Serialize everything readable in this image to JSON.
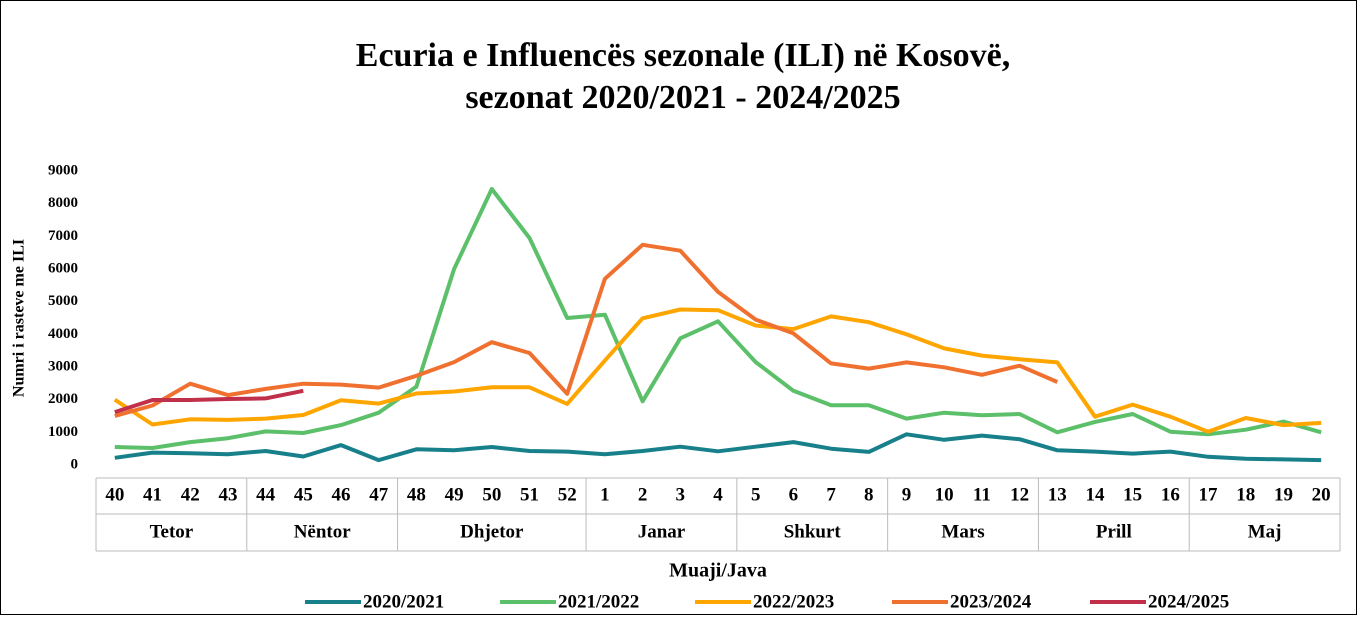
{
  "chart_data": {
    "type": "line",
    "title": "Ecuria e Influencës sezonale (ILI) në Kosovë,",
    "subtitle": "sezonat 2020/2021 - 2024/2025",
    "y_label": "Numri i rasteve me ILI",
    "x_label": "Muaji/Java",
    "categories": [
      "40",
      "41",
      "42",
      "43",
      "44",
      "45",
      "46",
      "47",
      "48",
      "49",
      "50",
      "51",
      "52",
      "1",
      "2",
      "3",
      "4",
      "5",
      "6",
      "7",
      "8",
      "9",
      "10",
      "11",
      "12",
      "13",
      "14",
      "15",
      "16",
      "17",
      "18",
      "19",
      "20"
    ],
    "months": [
      "Tetor",
      "Tetor",
      "Tetor",
      "Tetor",
      "Nëntor",
      "Nëntor",
      "Nëntor",
      "Nëntor",
      "Dhjetor",
      "Dhjetor",
      "Dhjetor",
      "Dhjetor",
      "Dhjetor",
      "Janar",
      "Janar",
      "Janar",
      "Janar",
      "Shkurt",
      "Shkurt",
      "Shkurt",
      "Shkurt",
      "Mars",
      "Mars",
      "Mars",
      "Mars",
      "Prill",
      "Prill",
      "Prill",
      "Prill",
      "Maj",
      "Maj",
      "Maj",
      "Maj"
    ],
    "ylim": [
      0,
      9000
    ],
    "yticks": [
      0,
      1000,
      2000,
      3000,
      4000,
      5000,
      6000,
      7000,
      8000,
      9000
    ],
    "grid": false,
    "legend": "bottom",
    "series": [
      {
        "name": "2020/2021",
        "color": "#17808a",
        "values": [
          220,
          380,
          360,
          330,
          430,
          260,
          610,
          150,
          480,
          450,
          550,
          430,
          410,
          330,
          430,
          560,
          420,
          560,
          700,
          500,
          400,
          940,
          770,
          900,
          790,
          450,
          410,
          350,
          410,
          250,
          190,
          170,
          150
        ]
      },
      {
        "name": "2021/2022",
        "color": "#5cbf6a",
        "values": [
          550,
          520,
          700,
          820,
          1030,
          980,
          1220,
          1600,
          2400,
          6000,
          8450,
          6950,
          4500,
          4600,
          1950,
          3880,
          4400,
          3150,
          2270,
          1830,
          1830,
          1420,
          1600,
          1520,
          1560,
          1000,
          1320,
          1560,
          1020,
          940,
          1080,
          1330,
          1000
        ]
      },
      {
        "name": "2022/2023",
        "color": "#ffa500",
        "values": [
          2000,
          1240,
          1400,
          1380,
          1420,
          1530,
          1980,
          1880,
          2190,
          2250,
          2380,
          2380,
          1870,
          3200,
          4490,
          4760,
          4740,
          4270,
          4160,
          4550,
          4370,
          4000,
          3570,
          3350,
          3240,
          3140,
          1480,
          1850,
          1480,
          1020,
          1440,
          1220,
          1290
        ]
      },
      {
        "name": "2023/2024",
        "color": "#f07030",
        "values": [
          1500,
          1820,
          2490,
          2140,
          2330,
          2490,
          2460,
          2370,
          2730,
          3150,
          3760,
          3430,
          2180,
          5700,
          6740,
          6560,
          5300,
          4450,
          4030,
          3110,
          2950,
          3140,
          2990,
          2760,
          3040,
          2540,
          null,
          null,
          null,
          null,
          null,
          null,
          null
        ]
      },
      {
        "name": "2024/2025",
        "color": "#c0304a",
        "values": [
          1620,
          1990,
          1990,
          2020,
          2040,
          2270,
          null,
          null,
          null,
          null,
          null,
          null,
          null,
          null,
          null,
          null,
          null,
          null,
          null,
          null,
          null,
          null,
          null,
          null,
          null,
          null,
          null,
          null,
          null,
          null,
          null,
          null,
          null
        ]
      }
    ]
  }
}
